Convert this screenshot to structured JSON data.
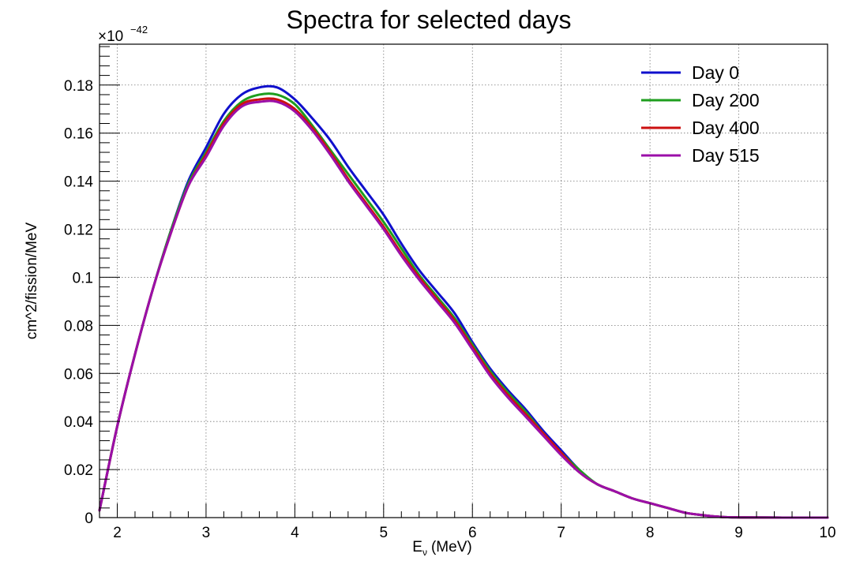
{
  "chart_data": {
    "type": "line",
    "title": "Spectra for selected days",
    "xlabel_main": "E",
    "xlabel_sub": "ν",
    "xlabel_unit": "(MeV)",
    "ylabel": "cm^2/fission/MeV",
    "y_multiplier_prefix": "×10",
    "y_multiplier_exp": "−42",
    "xlim": [
      1.8,
      10
    ],
    "ylim": [
      0,
      0.197
    ],
    "x_ticks": [
      2,
      3,
      4,
      5,
      6,
      7,
      8,
      9,
      10
    ],
    "x_tick_labels": [
      "2",
      "3",
      "4",
      "5",
      "6",
      "7",
      "8",
      "9",
      "10"
    ],
    "y_ticks": [
      0,
      0.02,
      0.04,
      0.06,
      0.08,
      0.1,
      0.12,
      0.14,
      0.16,
      0.18
    ],
    "y_tick_labels": [
      "0",
      "0.02",
      "0.04",
      "0.06",
      "0.08",
      "0.1",
      "0.12",
      "0.14",
      "0.16",
      "0.18"
    ],
    "grid": true,
    "legend_position": "top-right",
    "x": [
      1.8,
      2.0,
      2.2,
      2.4,
      2.6,
      2.8,
      3.0,
      3.2,
      3.4,
      3.6,
      3.8,
      4.0,
      4.2,
      4.4,
      4.6,
      4.8,
      5.0,
      5.2,
      5.4,
      5.6,
      5.8,
      6.0,
      6.2,
      6.4,
      6.6,
      6.8,
      7.0,
      7.2,
      7.4,
      7.6,
      7.8,
      8.0,
      8.2,
      8.4,
      8.6,
      8.8,
      9.0,
      9.5,
      10.0
    ],
    "series": [
      {
        "name": "Day 0",
        "color": "#1010cc",
        "values": [
          0.003,
          0.038,
          0.068,
          0.095,
          0.119,
          0.14,
          0.154,
          0.168,
          0.176,
          0.179,
          0.179,
          0.174,
          0.166,
          0.157,
          0.146,
          0.136,
          0.126,
          0.114,
          0.103,
          0.094,
          0.085,
          0.073,
          0.062,
          0.053,
          0.045,
          0.036,
          0.028,
          0.02,
          0.014,
          0.011,
          0.008,
          0.006,
          0.004,
          0.002,
          0.001,
          0.0003,
          0.0001,
          0.0,
          0.0
        ]
      },
      {
        "name": "Day 200",
        "color": "#1e9e1e",
        "values": [
          0.003,
          0.038,
          0.068,
          0.095,
          0.119,
          0.139,
          0.152,
          0.165,
          0.173,
          0.176,
          0.176,
          0.172,
          0.163,
          0.153,
          0.143,
          0.133,
          0.123,
          0.112,
          0.101,
          0.092,
          0.083,
          0.072,
          0.061,
          0.052,
          0.044,
          0.035,
          0.027,
          0.02,
          0.014,
          0.011,
          0.008,
          0.006,
          0.004,
          0.002,
          0.001,
          0.0003,
          0.0001,
          0.0,
          0.0
        ]
      },
      {
        "name": "Day 400",
        "color": "#cc1010",
        "values": [
          0.003,
          0.038,
          0.068,
          0.095,
          0.118,
          0.138,
          0.151,
          0.164,
          0.172,
          0.174,
          0.174,
          0.17,
          0.162,
          0.152,
          0.141,
          0.131,
          0.121,
          0.11,
          0.1,
          0.091,
          0.082,
          0.071,
          0.06,
          0.051,
          0.043,
          0.035,
          0.027,
          0.019,
          0.014,
          0.011,
          0.008,
          0.006,
          0.004,
          0.002,
          0.001,
          0.0003,
          0.0001,
          0.0,
          0.0
        ]
      },
      {
        "name": "Day 515",
        "color": "#9b0fa8",
        "values": [
          0.003,
          0.038,
          0.068,
          0.095,
          0.118,
          0.138,
          0.15,
          0.163,
          0.171,
          0.173,
          0.173,
          0.169,
          0.161,
          0.151,
          0.14,
          0.13,
          0.12,
          0.109,
          0.099,
          0.09,
          0.081,
          0.07,
          0.059,
          0.05,
          0.042,
          0.034,
          0.026,
          0.019,
          0.014,
          0.011,
          0.008,
          0.006,
          0.004,
          0.002,
          0.001,
          0.0003,
          0.0001,
          0.0,
          0.0
        ]
      }
    ]
  }
}
